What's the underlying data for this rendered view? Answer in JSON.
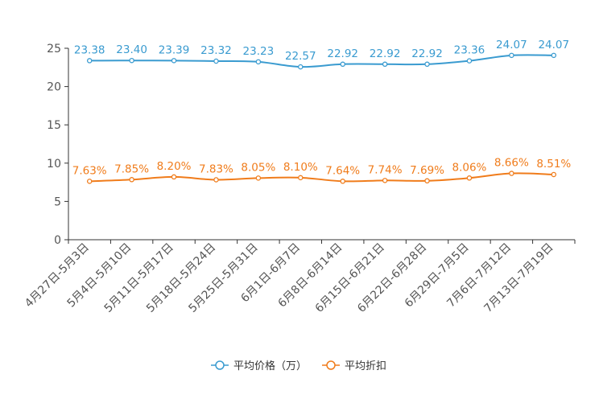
{
  "chart_data": {
    "type": "line",
    "categories": [
      "4月27日-5月3日",
      "5月4日-5月10日",
      "5月11日-5月17日",
      "5月18日-5月24日",
      "5月25日-5月31日",
      "6月1日-6月7日",
      "6月8日-6月14日",
      "6月15日-6月21日",
      "6月22日-6月28日",
      "6月29日-7月5日",
      "7月6日-7月12日",
      "7月13日-7月19日"
    ],
    "ylim": [
      0,
      25
    ],
    "yticks": [
      0,
      5,
      10,
      15,
      20,
      25
    ],
    "title": "",
    "xlabel": "",
    "ylabel": "",
    "legend_position": "bottom-center",
    "series": [
      {
        "name": "平均价格（万）",
        "color": "#3a9bd0",
        "values": [
          23.38,
          23.4,
          23.39,
          23.32,
          23.23,
          22.57,
          22.92,
          22.92,
          22.92,
          23.36,
          24.07,
          24.07
        ],
        "labels": [
          "23.38",
          "23.40",
          "23.39",
          "23.32",
          "23.23",
          "22.57",
          "22.92",
          "22.92",
          "22.92",
          "23.36",
          "24.07",
          "24.07"
        ]
      },
      {
        "name": "平均折扣",
        "color": "#f07c1b",
        "values": [
          7.63,
          7.85,
          8.2,
          7.83,
          8.05,
          8.1,
          7.64,
          7.74,
          7.69,
          8.06,
          8.66,
          8.51
        ],
        "labels": [
          "7.63%",
          "7.85%",
          "8.20%",
          "7.83%",
          "8.05%",
          "8.10%",
          "7.64%",
          "7.74%",
          "7.69%",
          "8.06%",
          "8.66%",
          "8.51%"
        ]
      }
    ]
  }
}
